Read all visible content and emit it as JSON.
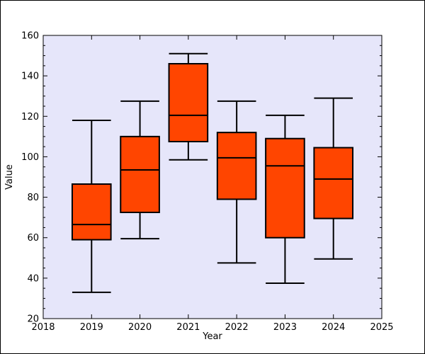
{
  "chart_data": {
    "type": "boxplot",
    "title": "",
    "xlabel": "Year",
    "ylabel": "Value",
    "xlim": [
      2018,
      2025
    ],
    "ylim": [
      20,
      160
    ],
    "x_ticks": [
      2018,
      2019,
      2020,
      2021,
      2022,
      2023,
      2024,
      2025
    ],
    "y_ticks": [
      20,
      40,
      60,
      80,
      100,
      120,
      140,
      160
    ],
    "y_minor_step": 5,
    "grid": false,
    "background_color": "#e6e6fa",
    "box_color": "#ff4500",
    "edge_color": "#000000",
    "boxes": [
      {
        "year": 2019,
        "whisker_low": 33,
        "q1": 59,
        "median": 66.5,
        "q3": 86.5,
        "whisker_high": 118
      },
      {
        "year": 2020,
        "whisker_low": 59.5,
        "q1": 72.5,
        "median": 93.5,
        "q3": 110,
        "whisker_high": 127.5
      },
      {
        "year": 2021,
        "whisker_low": 98.5,
        "q1": 107.5,
        "median": 120.5,
        "q3": 146,
        "whisker_high": 151
      },
      {
        "year": 2022,
        "whisker_low": 47.5,
        "q1": 79,
        "median": 99.5,
        "q3": 112,
        "whisker_high": 127.5
      },
      {
        "year": 2023,
        "whisker_low": 37.5,
        "q1": 60,
        "median": 95.5,
        "q3": 109,
        "whisker_high": 120.5
      },
      {
        "year": 2024,
        "whisker_low": 49.5,
        "q1": 69.5,
        "median": 89,
        "q3": 104.5,
        "whisker_high": 129
      }
    ]
  }
}
